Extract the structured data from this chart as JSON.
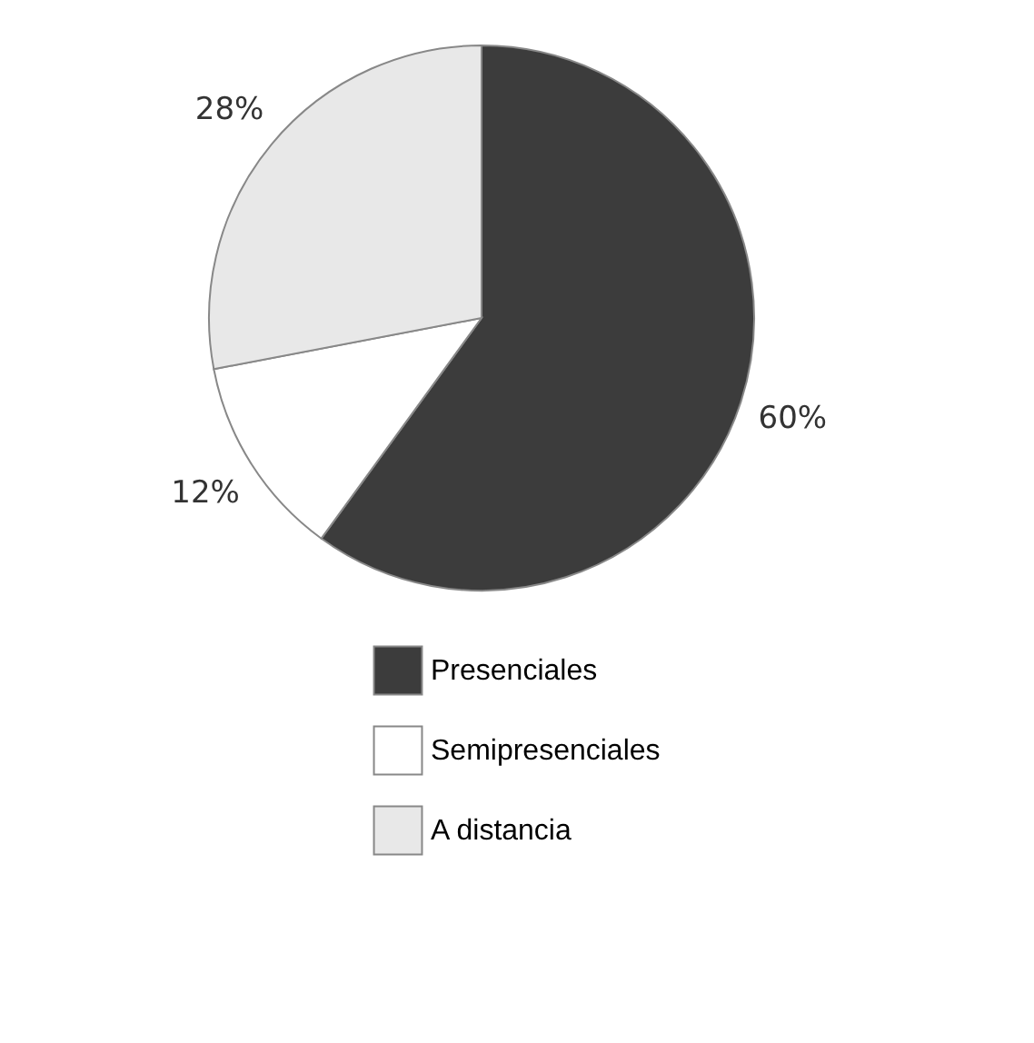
{
  "chart_data": {
    "type": "pie",
    "categories": [
      "Presenciales",
      "Semipresenciales",
      "A distancia"
    ],
    "values": [
      60,
      12,
      28
    ],
    "colors": [
      "#3c3c3c",
      "#ffffff",
      "#e8e8e8"
    ],
    "value_labels": [
      "60%",
      "12%",
      "28%"
    ],
    "legend": "bottom"
  }
}
